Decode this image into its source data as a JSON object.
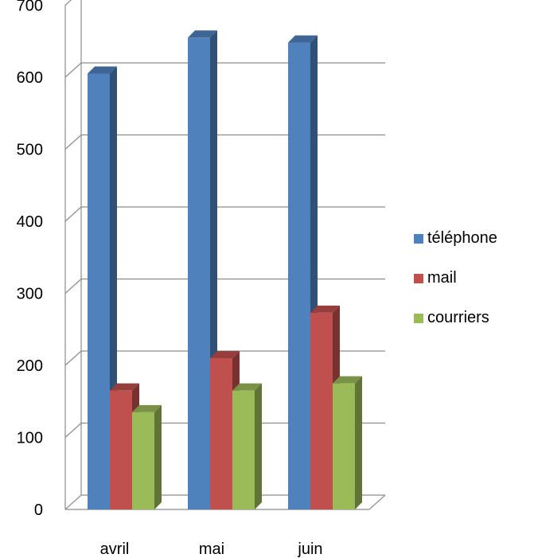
{
  "chart_data": {
    "type": "bar",
    "categories": [
      "avril",
      "mai",
      "juin"
    ],
    "series": [
      {
        "name": "téléphone",
        "values": [
          605,
          655,
          648
        ],
        "color": "#4F81BD"
      },
      {
        "name": "mail",
        "values": [
          165,
          210,
          273
        ],
        "color": "#C0504D"
      },
      {
        "name": "courriers",
        "values": [
          135,
          165,
          175
        ],
        "color": "#9BBB59"
      }
    ],
    "ylim": [
      0,
      700
    ],
    "yticks": [
      "0",
      "100",
      "200",
      "300",
      "400",
      "500",
      "600",
      "700"
    ],
    "grid": true,
    "legend_position": "right",
    "style": "3d-clustered-column"
  }
}
